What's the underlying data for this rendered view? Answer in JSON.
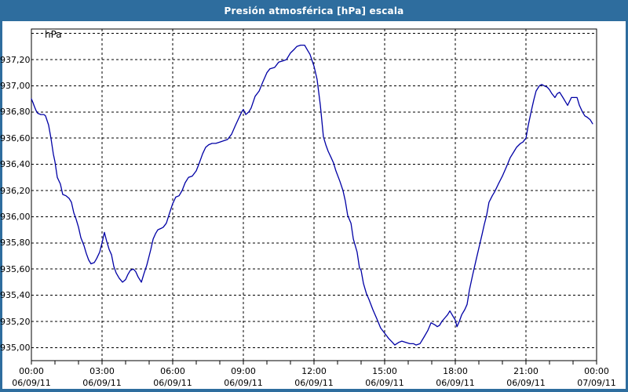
{
  "window": {
    "title": "Presión atmosférica [hPa] escala",
    "colors": {
      "chrome": "#2E6D9E",
      "title_text": "#FFFFFF",
      "plot_bg": "#FFFFFF",
      "grid": "#000000",
      "series": "#0000A5",
      "label_text": "#000000"
    }
  },
  "chart_data": {
    "type": "line",
    "title": "Presión atmosférica [hPa] escala",
    "y_unit_label": "hPa",
    "grid": "dashed",
    "legend_position": "none",
    "x_axis": {
      "range_hours": [
        0,
        24
      ],
      "major_grid_every_hours": 3,
      "minor_tick_every_hours": 1,
      "grid_hours": [
        3,
        6,
        9,
        12,
        15,
        18,
        21
      ],
      "ticks": [
        {
          "hour": 0,
          "time": "00:00",
          "date": "06/09/11"
        },
        {
          "hour": 3,
          "time": "03:00",
          "date": "06/09/11"
        },
        {
          "hour": 6,
          "time": "06:00",
          "date": "06/09/11"
        },
        {
          "hour": 9,
          "time": "09:00",
          "date": "06/09/11"
        },
        {
          "hour": 12,
          "time": "12:00",
          "date": "06/09/11"
        },
        {
          "hour": 15,
          "time": "15:00",
          "date": "06/09/11"
        },
        {
          "hour": 18,
          "time": "18:00",
          "date": "06/09/11"
        },
        {
          "hour": 21,
          "time": "21:00",
          "date": "06/09/11"
        },
        {
          "hour": 24,
          "time": "00:00",
          "date": "07/09/11"
        }
      ]
    },
    "y_axis": {
      "range": [
        934.9,
        937.44
      ],
      "gridline_values": [
        935.0,
        935.2,
        935.4,
        935.6,
        935.8,
        936.0,
        936.2,
        936.4,
        936.6,
        936.8,
        937.0,
        937.2,
        937.4
      ],
      "ticks": [
        {
          "value": 935.0,
          "label": "935,00"
        },
        {
          "value": 935.2,
          "label": "935,20"
        },
        {
          "value": 935.4,
          "label": "935,40"
        },
        {
          "value": 935.6,
          "label": "935,60"
        },
        {
          "value": 935.8,
          "label": "935,80"
        },
        {
          "value": 936.0,
          "label": "936,00"
        },
        {
          "value": 936.2,
          "label": "936,20"
        },
        {
          "value": 936.4,
          "label": "936,40"
        },
        {
          "value": 936.6,
          "label": "936,60"
        },
        {
          "value": 936.8,
          "label": "936,80"
        },
        {
          "value": 937.0,
          "label": "937,00"
        },
        {
          "value": 937.2,
          "label": "937,20"
        }
      ]
    },
    "points": [
      [
        0,
        936.9
      ],
      [
        0.07,
        936.87
      ],
      [
        0.13,
        936.84
      ],
      [
        0.2,
        936.81
      ],
      [
        0.27,
        936.79
      ],
      [
        0.4,
        936.78
      ],
      [
        0.53,
        936.78
      ],
      [
        0.6,
        936.77
      ],
      [
        0.73,
        936.7
      ],
      [
        0.83,
        936.6
      ],
      [
        0.93,
        936.48
      ],
      [
        1,
        936.42
      ],
      [
        1.1,
        936.3
      ],
      [
        1.23,
        936.25
      ],
      [
        1.33,
        936.17
      ],
      [
        1.47,
        936.16
      ],
      [
        1.6,
        936.14
      ],
      [
        1.7,
        936.11
      ],
      [
        1.8,
        936.03
      ],
      [
        1.9,
        935.98
      ],
      [
        2,
        935.92
      ],
      [
        2.1,
        935.84
      ],
      [
        2.23,
        935.78
      ],
      [
        2.33,
        935.72
      ],
      [
        2.43,
        935.67
      ],
      [
        2.53,
        935.64
      ],
      [
        2.67,
        935.65
      ],
      [
        2.77,
        935.68
      ],
      [
        2.9,
        935.73
      ],
      [
        3,
        935.8
      ],
      [
        3.1,
        935.88
      ],
      [
        3.2,
        935.81
      ],
      [
        3.3,
        935.75
      ],
      [
        3.4,
        935.71
      ],
      [
        3.5,
        935.62
      ],
      [
        3.6,
        935.57
      ],
      [
        3.73,
        935.53
      ],
      [
        3.87,
        935.5
      ],
      [
        4,
        935.52
      ],
      [
        4.1,
        935.56
      ],
      [
        4.2,
        935.59
      ],
      [
        4.33,
        935.6
      ],
      [
        4.43,
        935.58
      ],
      [
        4.53,
        935.54
      ],
      [
        4.67,
        935.5
      ],
      [
        4.77,
        935.56
      ],
      [
        4.9,
        935.63
      ],
      [
        5,
        935.7
      ],
      [
        5.07,
        935.75
      ],
      [
        5.17,
        935.83
      ],
      [
        5.27,
        935.87
      ],
      [
        5.37,
        935.9
      ],
      [
        5.5,
        935.91
      ],
      [
        5.6,
        935.92
      ],
      [
        5.73,
        935.95
      ],
      [
        5.87,
        936.03
      ],
      [
        6,
        936.1
      ],
      [
        6.13,
        936.15
      ],
      [
        6.27,
        936.16
      ],
      [
        6.4,
        936.2
      ],
      [
        6.53,
        936.26
      ],
      [
        6.67,
        936.3
      ],
      [
        6.83,
        936.31
      ],
      [
        7,
        936.35
      ],
      [
        7.13,
        936.41
      ],
      [
        7.27,
        936.48
      ],
      [
        7.4,
        936.53
      ],
      [
        7.53,
        936.55
      ],
      [
        7.67,
        936.56
      ],
      [
        7.83,
        936.56
      ],
      [
        8,
        936.57
      ],
      [
        8.17,
        936.58
      ],
      [
        8.33,
        936.59
      ],
      [
        8.5,
        936.63
      ],
      [
        8.67,
        936.7
      ],
      [
        8.8,
        936.75
      ],
      [
        8.93,
        936.8
      ],
      [
        9,
        936.82
      ],
      [
        9.1,
        936.78
      ],
      [
        9.23,
        936.8
      ],
      [
        9.33,
        936.83
      ],
      [
        9.5,
        936.92
      ],
      [
        9.67,
        936.96
      ],
      [
        9.83,
        937.03
      ],
      [
        10,
        937.1
      ],
      [
        10.13,
        937.13
      ],
      [
        10.33,
        937.14
      ],
      [
        10.5,
        937.18
      ],
      [
        10.67,
        937.19
      ],
      [
        10.83,
        937.2
      ],
      [
        11,
        937.25
      ],
      [
        11.17,
        937.28
      ],
      [
        11.27,
        937.3
      ],
      [
        11.43,
        937.31
      ],
      [
        11.6,
        937.31
      ],
      [
        11.73,
        937.27
      ],
      [
        11.83,
        937.24
      ],
      [
        12,
        937.15
      ],
      [
        12.13,
        937.05
      ],
      [
        12.27,
        936.85
      ],
      [
        12.4,
        936.61
      ],
      [
        12.5,
        936.55
      ],
      [
        12.6,
        936.5
      ],
      [
        12.73,
        936.45
      ],
      [
        12.83,
        936.41
      ],
      [
        12.93,
        936.35
      ],
      [
        13.1,
        936.27
      ],
      [
        13.23,
        936.2
      ],
      [
        13.33,
        936.12
      ],
      [
        13.43,
        936.01
      ],
      [
        13.57,
        935.95
      ],
      [
        13.67,
        935.83
      ],
      [
        13.83,
        935.73
      ],
      [
        13.93,
        935.61
      ],
      [
        14,
        935.59
      ],
      [
        14.1,
        935.49
      ],
      [
        14.23,
        935.41
      ],
      [
        14.33,
        935.37
      ],
      [
        14.5,
        935.29
      ],
      [
        14.67,
        935.22
      ],
      [
        14.83,
        935.15
      ],
      [
        15,
        935.11
      ],
      [
        15.17,
        935.07
      ],
      [
        15.33,
        935.04
      ],
      [
        15.43,
        935.02
      ],
      [
        15.6,
        935.04
      ],
      [
        15.73,
        935.05
      ],
      [
        15.9,
        935.04
      ],
      [
        16.07,
        935.03
      ],
      [
        16.23,
        935.03
      ],
      [
        16.33,
        935.02
      ],
      [
        16.5,
        935.03
      ],
      [
        16.67,
        935.08
      ],
      [
        16.83,
        935.13
      ],
      [
        16.9,
        935.16
      ],
      [
        16.97,
        935.19
      ],
      [
        17.07,
        935.18
      ],
      [
        17.17,
        935.17
      ],
      [
        17.23,
        935.16
      ],
      [
        17.33,
        935.17
      ],
      [
        17.43,
        935.2
      ],
      [
        17.57,
        935.23
      ],
      [
        17.67,
        935.25
      ],
      [
        17.77,
        935.28
      ],
      [
        17.9,
        935.24
      ],
      [
        18,
        935.21
      ],
      [
        18.07,
        935.16
      ],
      [
        18.17,
        935.2
      ],
      [
        18.27,
        935.25
      ],
      [
        18.4,
        935.29
      ],
      [
        18.5,
        935.33
      ],
      [
        18.6,
        935.44
      ],
      [
        18.73,
        935.55
      ],
      [
        18.87,
        935.66
      ],
      [
        19,
        935.76
      ],
      [
        19.13,
        935.86
      ],
      [
        19.23,
        935.94
      ],
      [
        19.33,
        936.01
      ],
      [
        19.43,
        936.11
      ],
      [
        19.57,
        936.16
      ],
      [
        19.67,
        936.19
      ],
      [
        19.83,
        936.25
      ],
      [
        20,
        936.31
      ],
      [
        20.17,
        936.38
      ],
      [
        20.33,
        936.45
      ],
      [
        20.5,
        936.5
      ],
      [
        20.6,
        936.53
      ],
      [
        20.77,
        936.56
      ],
      [
        20.87,
        936.57
      ],
      [
        21,
        936.6
      ],
      [
        21.1,
        936.7
      ],
      [
        21.23,
        936.81
      ],
      [
        21.33,
        936.89
      ],
      [
        21.43,
        936.96
      ],
      [
        21.57,
        937
      ],
      [
        21.67,
        937.01
      ],
      [
        21.77,
        937
      ],
      [
        21.9,
        936.99
      ],
      [
        22,
        936.97
      ],
      [
        22.1,
        936.94
      ],
      [
        22.23,
        936.91
      ],
      [
        22.33,
        936.94
      ],
      [
        22.43,
        936.95
      ],
      [
        22.57,
        936.91
      ],
      [
        22.67,
        936.88
      ],
      [
        22.77,
        936.85
      ],
      [
        22.93,
        936.91
      ],
      [
        23.07,
        936.91
      ],
      [
        23.17,
        936.91
      ],
      [
        23.27,
        936.85
      ],
      [
        23.4,
        936.8
      ],
      [
        23.5,
        936.77
      ],
      [
        23.6,
        936.76
      ],
      [
        23.73,
        936.74
      ],
      [
        23.83,
        936.71
      ]
    ]
  }
}
